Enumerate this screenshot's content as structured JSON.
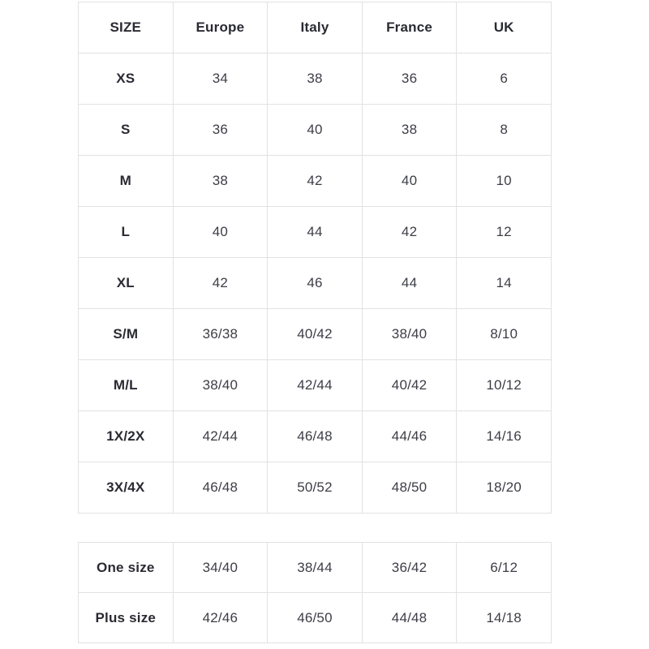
{
  "page": {
    "background": "#ffffff"
  },
  "colors": {
    "border": "#e2e2e2",
    "label_text": "#2a2a33",
    "value_text": "#3d3d47"
  },
  "size_table": {
    "columns": [
      "SIZE",
      "Europe",
      "Italy",
      "France",
      "UK"
    ],
    "rows": [
      {
        "label": "XS",
        "values": [
          "34",
          "38",
          "36",
          "6"
        ]
      },
      {
        "label": "S",
        "values": [
          "36",
          "40",
          "38",
          "8"
        ]
      },
      {
        "label": "M",
        "values": [
          "38",
          "42",
          "40",
          "10"
        ]
      },
      {
        "label": "L",
        "values": [
          "40",
          "44",
          "42",
          "12"
        ]
      },
      {
        "label": "XL",
        "values": [
          "42",
          "46",
          "44",
          "14"
        ]
      },
      {
        "label": "S/M",
        "values": [
          "36/38",
          "40/42",
          "38/40",
          "8/10"
        ]
      },
      {
        "label": "M/L",
        "values": [
          "38/40",
          "42/44",
          "40/42",
          "10/12"
        ]
      },
      {
        "label": "1X/2X",
        "values": [
          "42/44",
          "46/48",
          "44/46",
          "14/16"
        ]
      },
      {
        "label": "3X/4X",
        "values": [
          "46/48",
          "50/52",
          "48/50",
          "18/20"
        ]
      }
    ]
  },
  "extra_table": {
    "rows": [
      {
        "label": "One size",
        "values": [
          "34/40",
          "38/44",
          "36/42",
          "6/12"
        ]
      },
      {
        "label": "Plus size",
        "values": [
          "42/46",
          "46/50",
          "44/48",
          "14/18"
        ]
      }
    ]
  }
}
